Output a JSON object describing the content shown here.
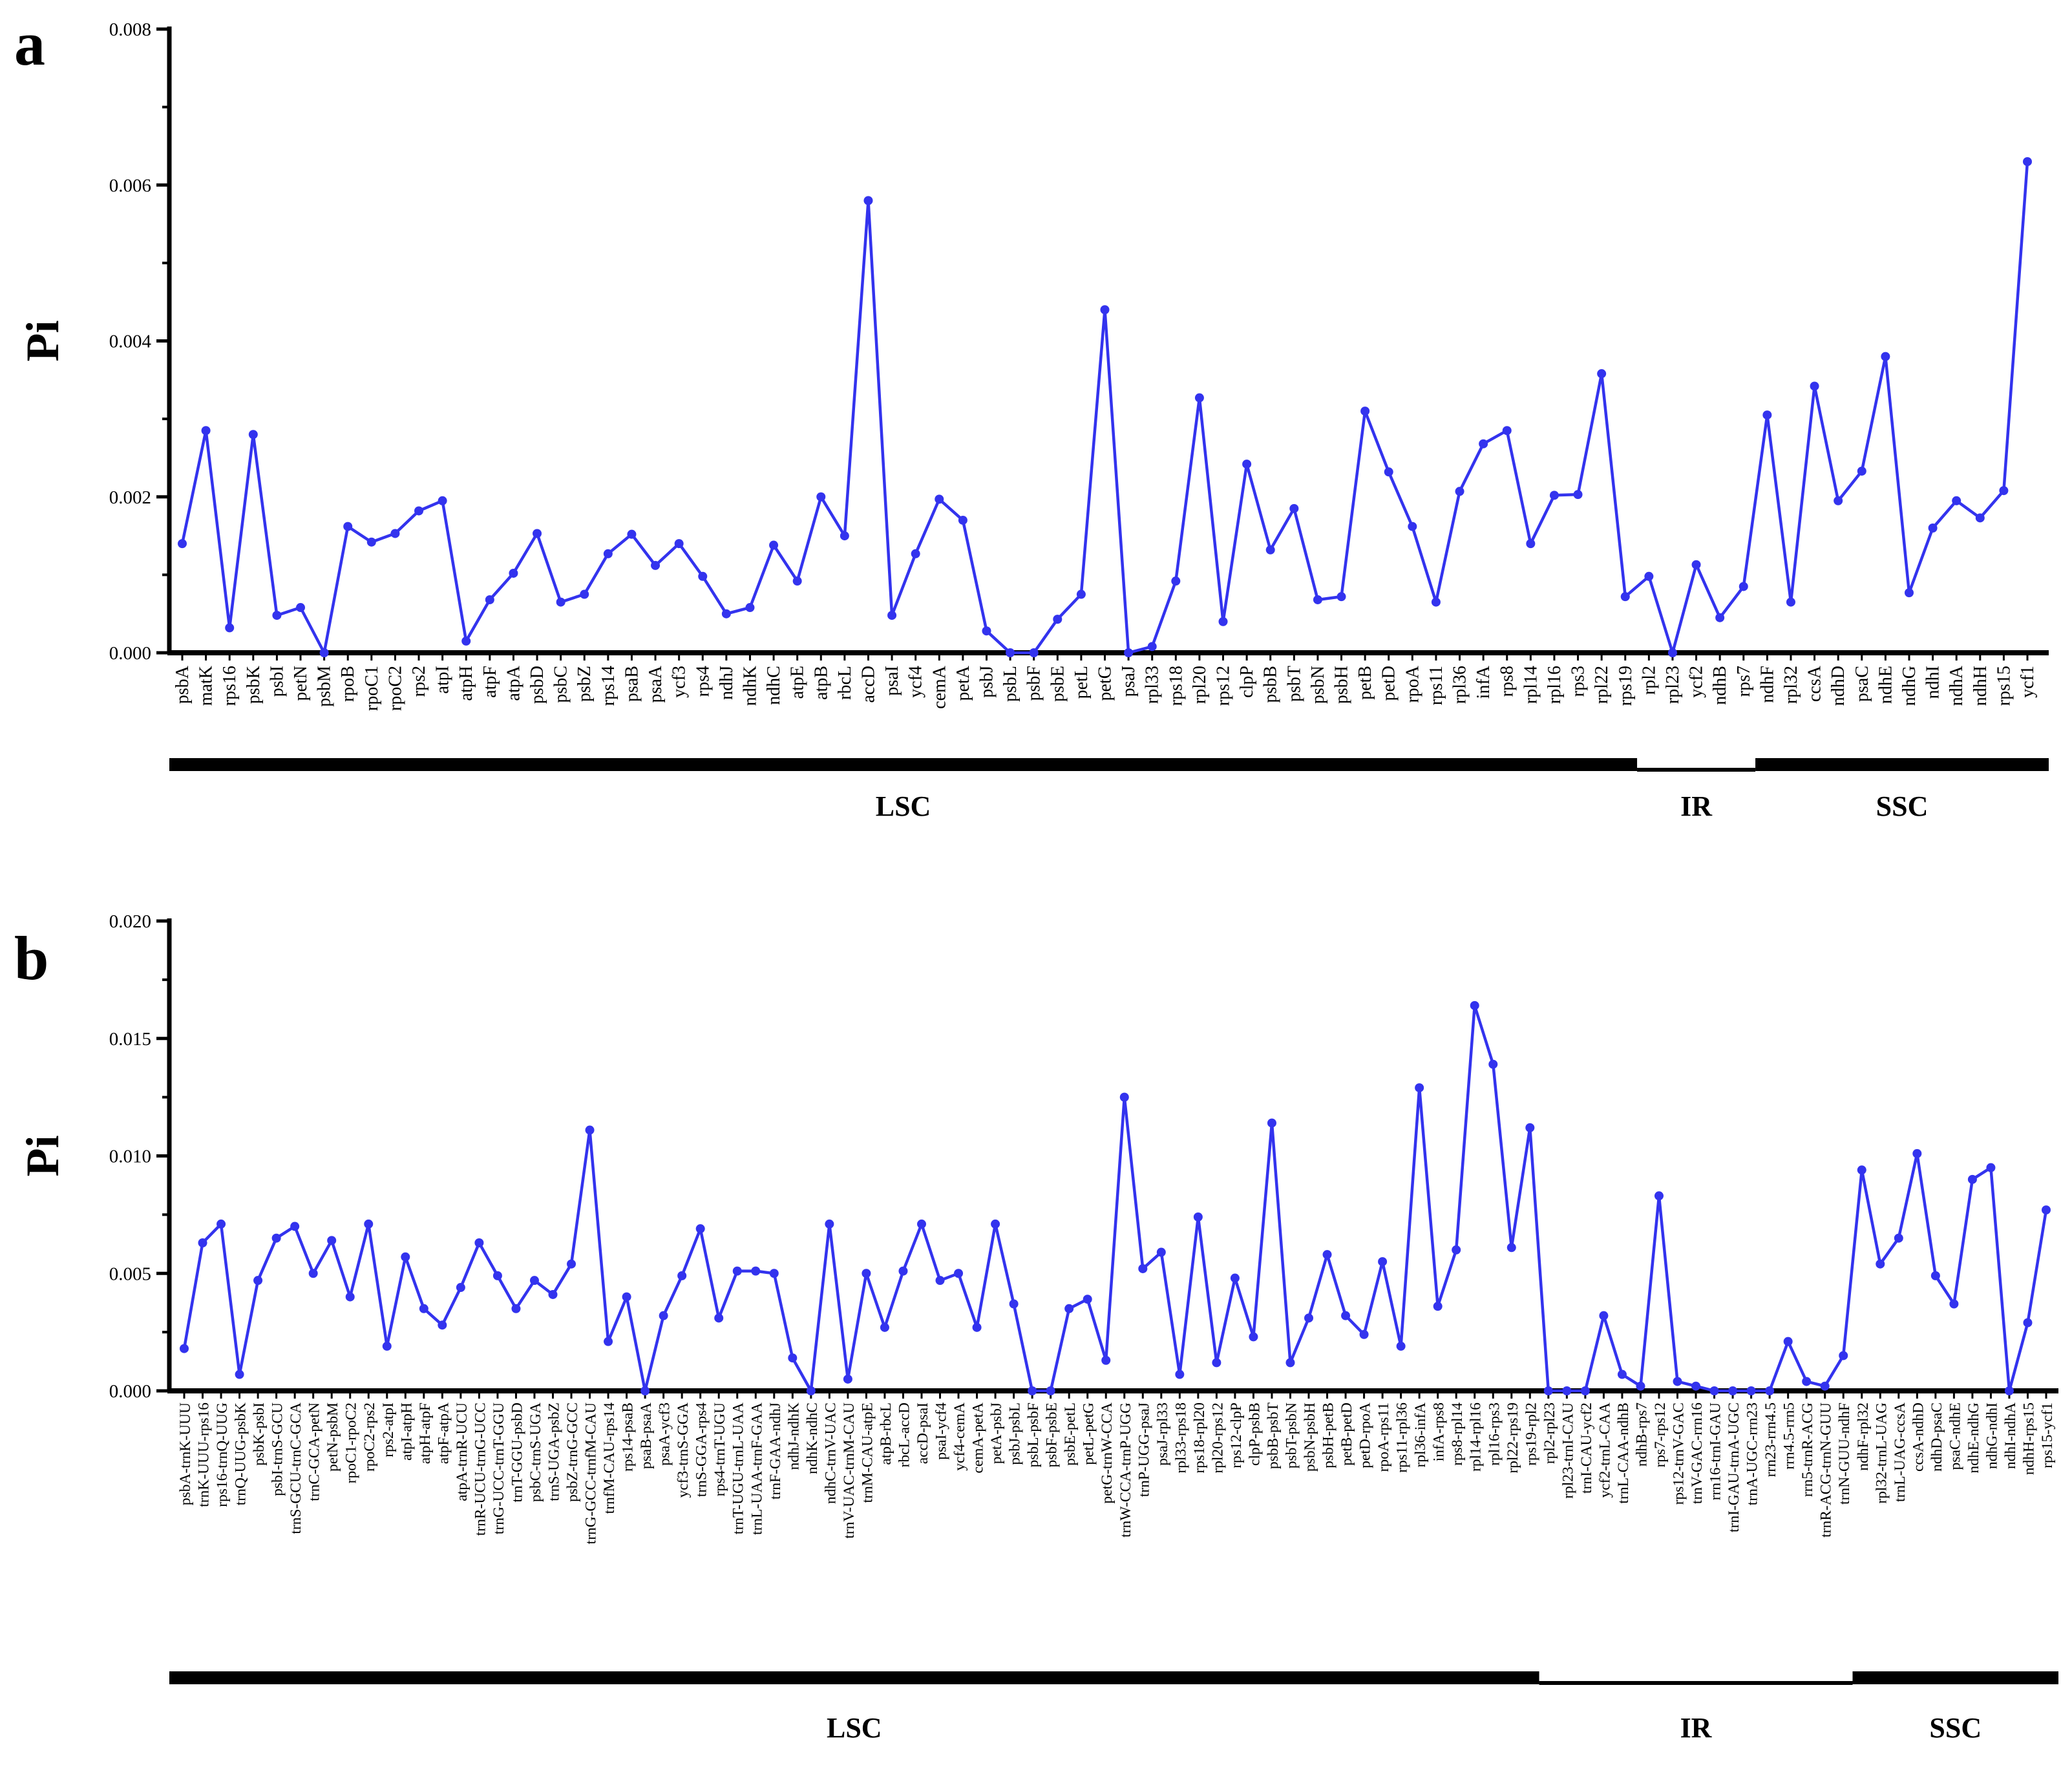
{
  "chart_data": [
    {
      "type": "line",
      "panel": "a",
      "ylabel": "Pi",
      "ylim": [
        0,
        0.008
      ],
      "yticks": [
        "0.000",
        "0.002",
        "0.004",
        "0.006",
        "0.008"
      ],
      "line_color": "#3333ee",
      "categories": [
        "psbA",
        "matK",
        "rps16",
        "psbK",
        "psbI",
        "petN",
        "psbM",
        "rpoB",
        "rpoC1",
        "rpoC2",
        "rps2",
        "atpI",
        "atpH",
        "atpF",
        "atpA",
        "psbD",
        "psbC",
        "psbZ",
        "rps14",
        "psaB",
        "psaA",
        "ycf3",
        "rps4",
        "ndhJ",
        "ndhK",
        "ndhC",
        "atpE",
        "atpB",
        "rbcL",
        "accD",
        "psaI",
        "ycf4",
        "cemA",
        "petA",
        "psbJ",
        "psbL",
        "psbF",
        "psbE",
        "petL",
        "petG",
        "psaJ",
        "rpl33",
        "rps18",
        "rpl20",
        "rps12",
        "clpP",
        "psbB",
        "psbT",
        "psbN",
        "psbH",
        "petB",
        "petD",
        "rpoA",
        "rps11",
        "rpl36",
        "infA",
        "rps8",
        "rpl14",
        "rpl16",
        "rps3",
        "rpl22",
        "rps19",
        "rpl2",
        "rpl23",
        "ycf2",
        "ndhB",
        "rps7",
        "ndhF",
        "rpl32",
        "ccsA",
        "ndhD",
        "psaC",
        "ndhE",
        "ndhG",
        "ndhI",
        "ndhA",
        "ndhH",
        "rps15",
        "ycf1"
      ],
      "values": [
        0.0014,
        0.00285,
        0.00032,
        0.0028,
        0.00048,
        0.00058,
        0.0,
        0.00162,
        0.00142,
        0.00153,
        0.00182,
        0.00195,
        0.00015,
        0.00068,
        0.00102,
        0.00153,
        0.00065,
        0.00075,
        0.00127,
        0.00152,
        0.00112,
        0.0014,
        0.00098,
        0.0005,
        0.00058,
        0.00138,
        0.00092,
        0.002,
        0.0015,
        0.0058,
        0.00048,
        0.00127,
        0.00197,
        0.0017,
        0.00028,
        0.0,
        0.0,
        0.00043,
        0.00075,
        0.0044,
        0.0,
        8e-05,
        0.00092,
        0.00327,
        0.0004,
        0.00242,
        0.00132,
        0.00185,
        0.00068,
        0.00072,
        0.0031,
        0.00232,
        0.00162,
        0.00065,
        0.00207,
        0.00268,
        0.00285,
        0.0014,
        0.00202,
        0.00203,
        0.00358,
        0.00072,
        0.00098,
        0.0,
        0.00113,
        0.00045,
        0.00085,
        0.00305,
        0.00065,
        0.00342,
        0.00195,
        0.00233,
        0.0038,
        0.00077,
        0.0016,
        0.00195,
        0.00173,
        0.00208,
        0.0063
      ],
      "regions": [
        {
          "label": "LSC",
          "start": 0,
          "end": 61
        },
        {
          "label": "IR",
          "start": 62,
          "end": 66
        },
        {
          "label": "SSC",
          "start": 67,
          "end": 78
        }
      ]
    },
    {
      "type": "line",
      "panel": "b",
      "ylabel": "Pi",
      "ylim": [
        0,
        0.02
      ],
      "yticks": [
        "0.000",
        "0.005",
        "0.010",
        "0.015",
        "0.020"
      ],
      "line_color": "#3333ee",
      "categories": [
        "psbA-trnK-UUU",
        "trnK-UUU-rps16",
        "rps16-trnQ-UUG",
        "trnQ-UUG-psbK",
        "psbK-psbI",
        "psbI-trnS-GCU",
        "trnS-GCU-trnC-GCA",
        "trnC-GCA-petN",
        "petN-psbM",
        "rpoC1-rpoC2",
        "rpoC2-rps2",
        "rps2-atpI",
        "atpI-atpH",
        "atpH-atpF",
        "atpF-atpA",
        "atpA-trnR-UCU",
        "trnR-UCU-trnG-UCC",
        "trnG-UCC-trnT-GGU",
        "trnT-GGU-psbD",
        "psbC-trnS-UGA",
        "trnS-UGA-psbZ",
        "psbZ-trnG-GCC",
        "trnG-GCC-trnfM-CAU",
        "trnfM-CAU-rps14",
        "rps14-psaB",
        "psaB-psaA",
        "psaA-ycf3",
        "ycf3-trnS-GGA",
        "trnS-GGA-rps4",
        "rps4-trnT-UGU",
        "trnT-UGU-trnL-UAA",
        "trnL-UAA-trnF-GAA",
        "trnF-GAA-ndhJ",
        "ndhJ-ndhK",
        "ndhK-ndhC",
        "ndhC-trnV-UAC",
        "trnV-UAC-trnM-CAU",
        "trnM-CAU-atpE",
        "atpB-rbcL",
        "rbcL-accD",
        "accD-psaI",
        "psaI-ycf4",
        "ycf4-cemA",
        "cemA-petA",
        "petA-psbJ",
        "psbJ-psbL",
        "psbL-psbF",
        "psbF-psbE",
        "psbE-petL",
        "petL-petG",
        "petG-trnW-CCA",
        "trnW-CCA-trnP-UGG",
        "trnP-UGG-psaJ",
        "psaJ-rpl33",
        "rpl33-rps18",
        "rps18-rpl20",
        "rpl20-rps12",
        "rps12-clpP",
        "clpP-psbB",
        "psbB-psbT",
        "psbT-psbN",
        "psbN-psbH",
        "psbH-petB",
        "petB-petD",
        "petD-rpoA",
        "rpoA-rps11",
        "rps11-rpl36",
        "rpl36-infA",
        "infA-rps8",
        "rps8-rpl14",
        "rpl14-rpl16",
        "rpl16-rps3",
        "rpl22-rps19",
        "rps19-rpl2",
        "rpl2-rpl23",
        "rpl23-trnI-CAU",
        "trnI-CAU-ycf2",
        "ycf2-trnL-CAA",
        "trnL-CAA-ndhB",
        "ndhB-rps7",
        "rps7-rps12",
        "rps12-trnV-GAC",
        "trnV-GAC-rrn16",
        "rrn16-trnI-GAU",
        "trnI-GAU-trnA-UGC",
        "trnA-UGC-rrn23",
        "rrn23-rrn4.5",
        "rrn4.5-rrn5",
        "rrn5-trnR-ACG",
        "trnR-ACG-trnN-GUU",
        "trnN-GUU-ndhF",
        "ndhF-rpl32",
        "rpl32-trnL-UAG",
        "trnL-UAG-ccsA",
        "ccsA-ndhD",
        "ndhD-psaC",
        "psaC-ndhE",
        "ndhE-ndhG",
        "ndhG-ndhI",
        "ndhI-ndhA",
        "ndhH-rps15",
        "rps15-ycf1"
      ],
      "values": [
        0.0018,
        0.0063,
        0.0071,
        0.0007,
        0.0047,
        0.0065,
        0.007,
        0.005,
        0.0064,
        0.004,
        0.0071,
        0.0019,
        0.0057,
        0.0035,
        0.0028,
        0.0044,
        0.0063,
        0.0049,
        0.0035,
        0.0047,
        0.0041,
        0.0054,
        0.0111,
        0.0021,
        0.004,
        0.0,
        0.0032,
        0.0049,
        0.0069,
        0.0031,
        0.0051,
        0.0051,
        0.005,
        0.0014,
        0.0,
        0.0071,
        0.0005,
        0.005,
        0.0027,
        0.0051,
        0.0071,
        0.0047,
        0.005,
        0.0027,
        0.0071,
        0.0037,
        0.0,
        0.0,
        0.0035,
        0.0039,
        0.0013,
        0.0125,
        0.0052,
        0.0059,
        0.0007,
        0.0074,
        0.0012,
        0.0048,
        0.0023,
        0.0114,
        0.0012,
        0.0031,
        0.0058,
        0.0032,
        0.0024,
        0.0055,
        0.0019,
        0.0129,
        0.0036,
        0.006,
        0.0164,
        0.0139,
        0.0061,
        0.0112,
        0.0,
        0.0,
        0.0,
        0.0032,
        0.0007,
        0.0002,
        0.0083,
        0.0004,
        0.0002,
        0.0,
        0.0,
        0.0,
        0.0,
        0.0021,
        0.0004,
        0.0002,
        0.0015,
        0.0094,
        0.0054,
        0.0065,
        0.0101,
        0.0049,
        0.0037,
        0.009,
        0.0095,
        0.0,
        0.0029,
        0.0077
      ],
      "regions": [
        {
          "label": "LSC",
          "start": 0,
          "end": 73
        },
        {
          "label": "IR",
          "start": 74,
          "end": 90
        },
        {
          "label": "SSC",
          "start": 91,
          "end": 101
        }
      ]
    }
  ]
}
